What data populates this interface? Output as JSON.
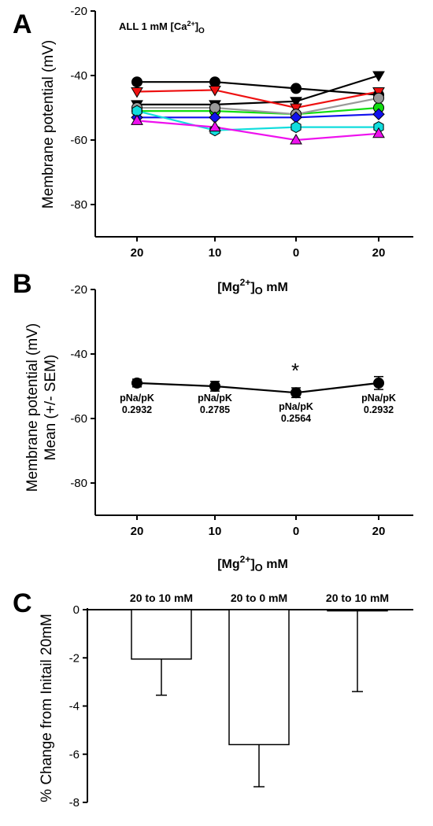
{
  "panels": {
    "a": {
      "letter": "A",
      "title_parts": [
        "ALL 1 mM [Ca",
        "2+",
        "]",
        "O"
      ],
      "ylabel": "Membrane potential (mV)",
      "xtitle_parts": [
        "[Mg",
        "2+",
        "]",
        "O",
        " mM"
      ],
      "chart_data": {
        "type": "line",
        "x": [
          "20",
          "10",
          "0",
          "20"
        ],
        "ylim": [
          -90,
          -20
        ],
        "yticks": [
          -20,
          -40,
          -60,
          -80
        ],
        "grid": false,
        "series": [
          {
            "values": [
              -42,
              -42,
              -44,
              -46
            ],
            "color": "#000000",
            "marker": "circle"
          },
          {
            "values": [
              -49,
              -49,
              -48,
              -40
            ],
            "color": "#000000",
            "marker": "triangle-down"
          },
          {
            "values": [
              -45,
              -44.5,
              -50,
              -45
            ],
            "color": "#ee1111",
            "marker": "triangle-down"
          },
          {
            "values": [
              -51,
              -51,
              -52,
              -50
            ],
            "color": "#11dd11",
            "marker": "circle"
          },
          {
            "values": [
              -50,
              -50,
              -52,
              -47
            ],
            "color": "#999999",
            "marker": "circle"
          },
          {
            "values": [
              -53,
              -53,
              -53,
              -52
            ],
            "color": "#1111ee",
            "marker": "diamond"
          },
          {
            "values": [
              -51,
              -57,
              -56,
              -56
            ],
            "color": "#11dddd",
            "marker": "hexagon"
          },
          {
            "values": [
              -54,
              -56,
              -60,
              -58
            ],
            "color": "#ee11ee",
            "marker": "triangle-up"
          }
        ]
      }
    },
    "b": {
      "letter": "B",
      "ylabel_line1": "Membrane potential (mV)",
      "ylabel_line2": "Mean (+/- SEM)",
      "xtitle_parts": [
        "[Mg",
        "2+",
        "]",
        "O",
        " mM"
      ],
      "significance_marker": "*",
      "chart_data": {
        "type": "line",
        "x": [
          "20",
          "10",
          "0",
          "20"
        ],
        "ylim": [
          -90,
          -20
        ],
        "yticks": [
          -20,
          -40,
          -60,
          -80
        ],
        "grid": false,
        "series": [
          {
            "values": [
              -49,
              -50,
              -52,
              -49
            ],
            "errors": [
              1.2,
              1.5,
              1.5,
              2.0
            ],
            "color": "#000000",
            "marker": "circle"
          }
        ],
        "annotations": [
          {
            "label": "pNa/pK",
            "value": "0.2932"
          },
          {
            "label": "pNa/pK",
            "value": "0.2785"
          },
          {
            "label": "pNa/pK",
            "value": "0.2564"
          },
          {
            "label": "pNa/pK",
            "value": "0.2932"
          }
        ]
      }
    },
    "c": {
      "letter": "C",
      "ylabel": "% Change from Initail 20mM",
      "chart_data": {
        "type": "bar",
        "categories": [
          "20 to 10 mM",
          "20 to 0 mM",
          "20 to 10 mM"
        ],
        "values": [
          -2.05,
          -5.6,
          -0.05
        ],
        "errors": [
          1.5,
          1.75,
          3.35
        ],
        "ylim": [
          -8,
          0
        ],
        "yticks": [
          0,
          -2,
          -4,
          -6,
          -8
        ],
        "grid": false
      }
    }
  }
}
